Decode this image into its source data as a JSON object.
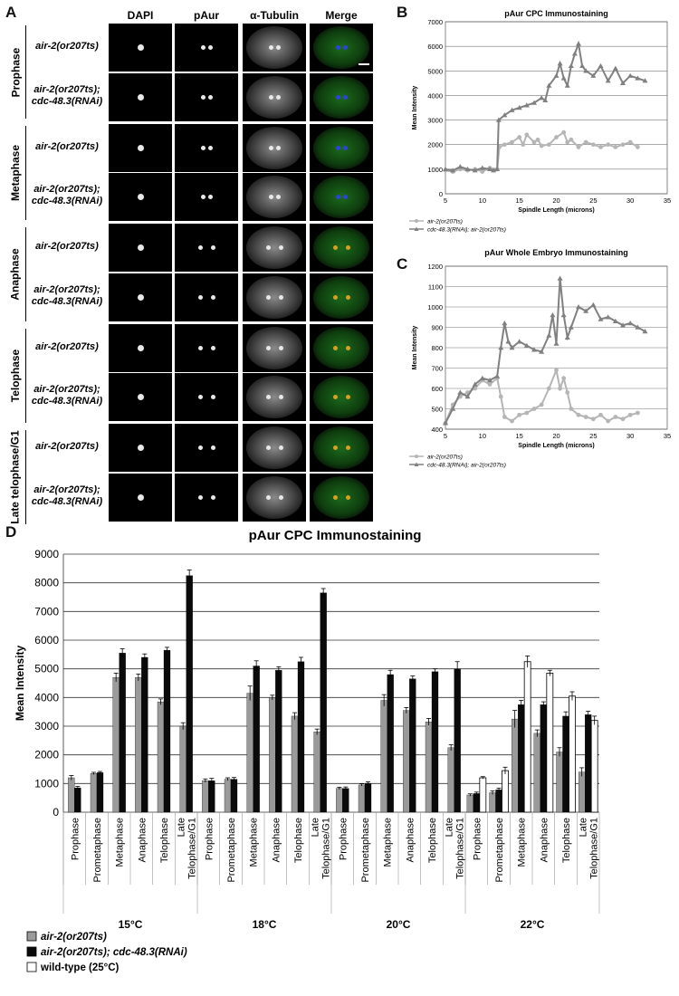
{
  "panelA": {
    "letter": "A",
    "columns": [
      "DAPI",
      "pAur",
      "α-Tubulin",
      "Merge"
    ],
    "phases": [
      "Prophase",
      "Metaphase",
      "Anaphase",
      "Telophase",
      "Late telophase/G1"
    ],
    "strains": [
      "air-2(or207ts)",
      "air-2(or207ts);\ncdc-48.3(RNAi)"
    ]
  },
  "panelB": {
    "letter": "B",
    "title": "pAur  CPC Immunostaining",
    "ylabel": "Mean Intensity",
    "xlabel": "Spindle Length (microns)",
    "legend": [
      "air-2(or207ts)",
      "cdc-48.3(RNAi); air-2(or207ts)"
    ]
  },
  "panelC": {
    "letter": "C",
    "title": "pAur  Whole Embryo Immunostaining",
    "ylabel": "Mean Intensity",
    "xlabel": "Spindle Length (microns)",
    "legend": [
      "air-2(or207ts)",
      "cdc-48.3(RNAi); air-2(or207ts)"
    ]
  },
  "panelD": {
    "letter": "D",
    "title": "pAur  CPC Immunostaining",
    "ylabel": "Mean Intensity",
    "legend": [
      "air-2(or207ts)",
      "air-2(or207ts); cdc-48.3(RNAi)",
      "wild-type (25°C)"
    ]
  },
  "colors": {
    "gray": "#9a9a9a",
    "black": "#0a0a0a",
    "white": "#ffffff",
    "lineGrayLight": "#b5b5b5",
    "lineGrayDark": "#808080"
  },
  "chart_data": [
    {
      "type": "line",
      "title": "pAur  CPC Immunostaining",
      "xlabel": "Spindle Length (microns)",
      "ylabel": "Mean Intensity",
      "xlim": [
        5,
        35
      ],
      "ylim": [
        0,
        7000
      ],
      "xticks": [
        5,
        10,
        15,
        20,
        25,
        30,
        35
      ],
      "yticks": [
        0,
        1000,
        2000,
        3000,
        4000,
        5000,
        6000,
        7000
      ],
      "grid": "horizontal",
      "legend_position": "bottom-left",
      "series": [
        {
          "name": "air-2(or207ts)",
          "marker": "circle",
          "x": [
            5,
            6,
            7,
            8,
            9,
            10,
            11,
            12,
            12.3,
            13,
            14,
            15,
            15.5,
            16,
            17,
            17.5,
            18,
            19,
            20,
            21,
            21.5,
            22,
            23,
            24,
            25,
            26,
            27,
            28,
            29,
            30,
            31
          ],
          "y": [
            950,
            900,
            1000,
            950,
            1000,
            900,
            1050,
            1000,
            1900,
            2000,
            2100,
            2300,
            2000,
            2400,
            2100,
            2200,
            1950,
            2000,
            2300,
            2500,
            2100,
            2200,
            1900,
            2100,
            2000,
            1900,
            2000,
            1900,
            2000,
            2100,
            1900
          ]
        },
        {
          "name": "cdc-48.3(RNAi); air-2(or207ts)",
          "marker": "triangle",
          "x": [
            5,
            6,
            7,
            8,
            9,
            10,
            11,
            11.5,
            12,
            12.2,
            13,
            14,
            15,
            16,
            17,
            18,
            18.5,
            19,
            20,
            20.5,
            21,
            21.5,
            22,
            22.5,
            23,
            23.5,
            24,
            25,
            26,
            27,
            28,
            29,
            30,
            31,
            32
          ],
          "y": [
            1000,
            950,
            1100,
            1000,
            950,
            1050,
            1000,
            950,
            1000,
            3000,
            3200,
            3400,
            3500,
            3600,
            3700,
            3900,
            3800,
            4400,
            4800,
            5300,
            4700,
            4400,
            5200,
            5700,
            6100,
            5200,
            5000,
            4800,
            5200,
            4600,
            5100,
            4500,
            4800,
            4700,
            4600
          ]
        }
      ]
    },
    {
      "type": "line",
      "title": "pAur  Whole Embryo Immunostaining",
      "xlabel": "Spindle Length (microns)",
      "ylabel": "Mean Intensity",
      "xlim": [
        5,
        35
      ],
      "ylim": [
        400,
        1200
      ],
      "xticks": [
        5,
        10,
        15,
        20,
        25,
        30,
        35
      ],
      "yticks": [
        400,
        500,
        600,
        700,
        800,
        900,
        1000,
        1100,
        1200
      ],
      "grid": "horizontal",
      "legend_position": "bottom-left",
      "series": [
        {
          "name": "air-2(or207ts)",
          "marker": "circle",
          "x": [
            5,
            6,
            7,
            8,
            9,
            10,
            11,
            12,
            12.5,
            13,
            14,
            15,
            16,
            17,
            18,
            19,
            20,
            20.5,
            21,
            21.5,
            22,
            23,
            24,
            25,
            26,
            27,
            28,
            29,
            30,
            31
          ],
          "y": [
            430,
            520,
            560,
            580,
            600,
            640,
            620,
            650,
            560,
            460,
            440,
            470,
            480,
            500,
            520,
            600,
            690,
            600,
            650,
            580,
            500,
            470,
            460,
            450,
            470,
            440,
            460,
            450,
            470,
            480
          ]
        },
        {
          "name": "cdc-48.3(RNAi); air-2(or207ts)",
          "marker": "triangle",
          "x": [
            5,
            6,
            7,
            8,
            9,
            10,
            11,
            12,
            12.5,
            13,
            13.5,
            14,
            15,
            16,
            17,
            18,
            19,
            19.5,
            20,
            20.5,
            21,
            21.5,
            22,
            23,
            24,
            25,
            26,
            27,
            28,
            29,
            30,
            31,
            32
          ],
          "y": [
            430,
            500,
            580,
            560,
            620,
            650,
            640,
            660,
            800,
            920,
            830,
            800,
            830,
            810,
            790,
            780,
            860,
            960,
            820,
            1140,
            960,
            850,
            900,
            1000,
            980,
            1010,
            940,
            950,
            930,
            910,
            920,
            900,
            880
          ]
        }
      ]
    },
    {
      "type": "bar",
      "title": "pAur  CPC Immunostaining",
      "ylabel": "Mean Intensity",
      "ylim": [
        0,
        9000
      ],
      "yticks": [
        0,
        1000,
        2000,
        3000,
        4000,
        5000,
        6000,
        7000,
        8000,
        9000
      ],
      "grid": "horizontal",
      "legend_position": "bottom-left",
      "groups": [
        "15°C",
        "18°C",
        "20°C",
        "22°C"
      ],
      "categories": [
        "Prophase",
        "Prometaphase",
        "Metaphase",
        "Anaphase",
        "Telophase",
        "Late Telophase/G1"
      ],
      "series": [
        {
          "name": "air-2(or207ts)",
          "color": "#9a9a9a",
          "values": [
            [
              1200,
              1350,
              4700,
              4700,
              3850,
              3000
            ],
            [
              1100,
              1150,
              4150,
              4000,
              3350,
              2800
            ],
            [
              830,
              950,
              3900,
              3550,
              3150,
              2250
            ],
            [
              600,
              680,
              3250,
              2750,
              2100,
              1400
            ]
          ],
          "errors": [
            [
              80,
              40,
              150,
              120,
              100,
              120
            ],
            [
              60,
              50,
              250,
              80,
              120,
              100
            ],
            [
              40,
              40,
              200,
              100,
              120,
              100
            ],
            [
              40,
              60,
              300,
              120,
              150,
              150
            ]
          ]
        },
        {
          "name": "air-2(or207ts); cdc-48.3(RNAi)",
          "color": "#0a0a0a",
          "values": [
            [
              850,
              1380,
              5550,
              5400,
              5650,
              8250
            ],
            [
              1100,
              1150,
              5100,
              4950,
              5250,
              7650
            ],
            [
              830,
              1000,
              4800,
              4650,
              4900,
              5000
            ],
            [
              650,
              780,
              3750,
              3750,
              3350,
              3400
            ]
          ],
          "errors": [
            [
              50,
              40,
              150,
              120,
              100,
              200
            ],
            [
              80,
              60,
              180,
              120,
              150,
              150
            ],
            [
              50,
              60,
              150,
              100,
              100,
              250
            ],
            [
              50,
              60,
              150,
              100,
              150,
              120
            ]
          ]
        },
        {
          "name": "wild-type (25°C)",
          "color": "#ffffff",
          "values": [
            [
              null,
              null,
              null,
              null,
              null,
              null
            ],
            [
              null,
              null,
              null,
              null,
              null,
              null
            ],
            [
              null,
              null,
              null,
              null,
              null,
              null
            ],
            [
              1200,
              1450,
              5250,
              4850,
              4050,
              3200
            ]
          ],
          "errors": [
            [
              null,
              null,
              null,
              null,
              null,
              null
            ],
            [
              null,
              null,
              null,
              null,
              null,
              null
            ],
            [
              null,
              null,
              null,
              null,
              null,
              null
            ],
            [
              40,
              120,
              200,
              100,
              150,
              150
            ]
          ]
        }
      ]
    }
  ]
}
